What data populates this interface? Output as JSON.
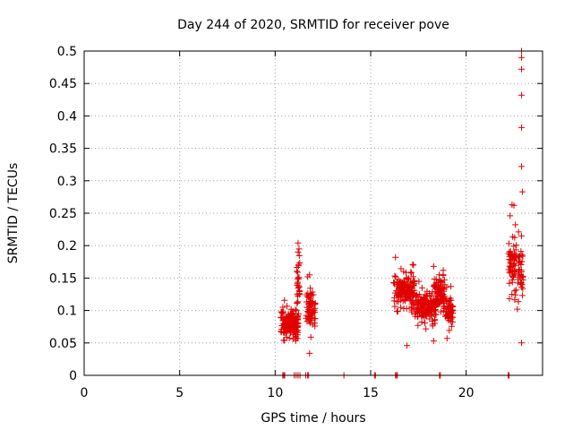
{
  "chart_data": {
    "type": "scatter",
    "title": "Day 244 of 2020, SRMTID for receiver pove",
    "xlabel": "GPS time / hours",
    "ylabel": "SRMTID / TECUs",
    "xlim": [
      0,
      24
    ],
    "ylim": [
      0,
      0.5
    ],
    "xticks": [
      0,
      5,
      10,
      15,
      20
    ],
    "xtick_labels": [
      "0",
      "5",
      "10",
      "15",
      "20"
    ],
    "yticks": [
      0,
      0.05,
      0.1,
      0.15,
      0.2,
      0.25,
      0.3,
      0.35,
      0.4,
      0.45,
      0.5
    ],
    "ytick_labels": [
      "0",
      "0.05",
      "0.1",
      "0.15",
      "0.2",
      "0.25",
      "0.3",
      "0.35",
      "0.4",
      "0.45",
      "0.5"
    ],
    "grid": true,
    "marker": "+",
    "color": "#e00000",
    "clusters": [
      {
        "x0": 10.3,
        "x1": 11.2,
        "yc": 0.075,
        "ys": 0.02,
        "n": 170
      },
      {
        "x0": 11.1,
        "x1": 11.3,
        "yc": 0.13,
        "ys": 0.04,
        "n": 28
      },
      {
        "x0": 11.6,
        "x1": 12.1,
        "yc": 0.095,
        "ys": 0.028,
        "n": 70
      },
      {
        "x0": 16.2,
        "x1": 17.3,
        "yc": 0.125,
        "ys": 0.025,
        "n": 160
      },
      {
        "x0": 17.3,
        "x1": 18.4,
        "yc": 0.1,
        "ys": 0.022,
        "n": 150
      },
      {
        "x0": 18.3,
        "x1": 18.9,
        "yc": 0.12,
        "ys": 0.025,
        "n": 90
      },
      {
        "x0": 18.9,
        "x1": 19.3,
        "yc": 0.095,
        "ys": 0.02,
        "n": 55
      },
      {
        "x0": 22.2,
        "x1": 22.6,
        "yc": 0.16,
        "ys": 0.04,
        "n": 55
      },
      {
        "x0": 22.6,
        "x1": 23.0,
        "yc": 0.15,
        "ys": 0.045,
        "n": 45
      }
    ],
    "outliers": [
      {
        "x": 22.9,
        "y": 0.5
      },
      {
        "x": 22.9,
        "y": 0.49
      },
      {
        "x": 22.9,
        "y": 0.472
      },
      {
        "x": 22.9,
        "y": 0.432
      },
      {
        "x": 22.9,
        "y": 0.382
      },
      {
        "x": 22.9,
        "y": 0.322
      },
      {
        "x": 22.95,
        "y": 0.283
      },
      {
        "x": 22.4,
        "y": 0.263
      },
      {
        "x": 22.5,
        "y": 0.262
      },
      {
        "x": 22.3,
        "y": 0.246
      },
      {
        "x": 22.9,
        "y": 0.215
      },
      {
        "x": 11.2,
        "y": 0.204
      },
      {
        "x": 11.25,
        "y": 0.195
      },
      {
        "x": 11.2,
        "y": 0.19
      },
      {
        "x": 16.3,
        "y": 0.182
      },
      {
        "x": 17.2,
        "y": 0.171
      },
      {
        "x": 18.3,
        "y": 0.168
      },
      {
        "x": 18.8,
        "y": 0.162
      },
      {
        "x": 18.8,
        "y": 0.155
      },
      {
        "x": 19.2,
        "y": 0.137
      },
      {
        "x": 11.8,
        "y": 0.155
      },
      {
        "x": 10.4,
        "y": 0.105
      },
      {
        "x": 16.9,
        "y": 0.046
      },
      {
        "x": 11.8,
        "y": 0.034
      },
      {
        "x": 22.9,
        "y": 0.05
      },
      {
        "x": 19.0,
        "y": 0.057
      },
      {
        "x": 18.3,
        "y": 0.053
      }
    ],
    "zero_points_x": [
      10.4,
      10.45,
      10.5,
      11.0,
      11.1,
      11.2,
      11.3,
      11.6,
      11.7,
      11.75,
      13.6,
      15.2,
      15.25,
      16.3,
      16.35,
      16.4,
      18.6,
      18.65,
      22.2,
      22.25
    ]
  }
}
